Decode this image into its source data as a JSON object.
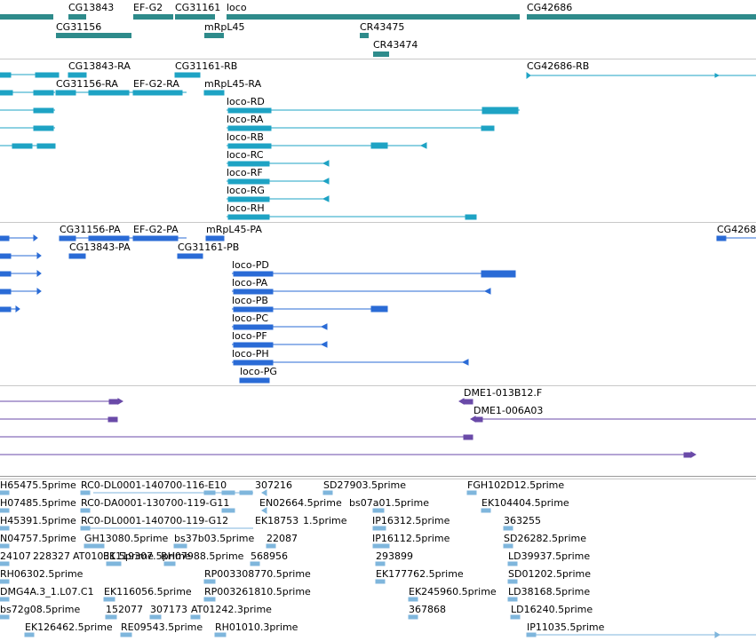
{
  "colors": {
    "gene": "#2e8b8b",
    "transcript": "#1ea3c4",
    "protein": "#2a6bd6",
    "clone": "#6a4aa8",
    "est": "#7fb6dc",
    "separator": "#c8c8c8"
  },
  "tracks": {
    "genes": {
      "labels": [
        "CG13843",
        "EF-G2",
        "CG31161",
        "loco",
        "CG42686",
        "CG31156",
        "mRpL45",
        "CR43475",
        "CR43474"
      ]
    },
    "transcripts": {
      "labels": [
        "CG13843-RA",
        "CG31161-RB",
        "CG42686-RB",
        "CG31156-RA",
        "EF-G2-RA",
        "mRpL45-RA",
        "loco-RD",
        "loco-RA",
        "loco-RB",
        "loco-RC",
        "loco-RF",
        "loco-RG",
        "loco-RH"
      ]
    },
    "proteins": {
      "labels": [
        "CG31156-PA",
        "EF-G2-PA",
        "mRpL45-PA",
        "CG4268",
        "CG13843-PA",
        "CG31161-PB",
        "loco-PD",
        "loco-PA",
        "loco-PB",
        "loco-PC",
        "loco-PF",
        "loco-PH",
        "loco-PG"
      ]
    },
    "clones": {
      "labels": [
        "DME1-013B12.F",
        "DME1-006A03"
      ]
    },
    "ests": {
      "labels": [
        "H65475.5prime",
        "RC0-DL0001-140700-116-E10",
        "307216",
        "SD27903.5prime",
        "FGH102D12.5prime",
        "H07485.5prime",
        "RC0-DA0001-130700-119-G11",
        "EN02664.5prime",
        "bs07a01.5prime",
        "EK104404.5prime",
        "H45391.5prime",
        "RC0-DL0001-140700-119-G12",
        "EK18753",
        "1.5prime",
        "IP16312.5prime",
        "363255",
        "N04757.5prime",
        "GH13080.5prime",
        "bs37b03.5prime",
        "22087",
        "IP16112.5prime",
        "SD26282.5prime",
        "24107",
        "228327",
        "AT01031.5prime",
        "EK119307.5prime",
        "RH07988.5prime",
        "568956",
        "293899",
        "LD39937.5prime",
        "RH06302.5prime",
        "RP003308770.5prime",
        "EK177762.5prime",
        "SD01202.5prime",
        "DMG4A.3_1.L07.C1",
        "EK116056.5prime",
        "RP003261810.5prime",
        "EK245960.5prime",
        "LD38168.5prime",
        "bs72g08.5prime",
        "152077",
        "307173",
        "AT01242.3prime",
        "367868",
        "LD16240.5prime",
        "EK126462.5prime",
        "RE09543.5prime",
        "RH01010.3prime",
        "IP11035.5prime"
      ]
    }
  }
}
